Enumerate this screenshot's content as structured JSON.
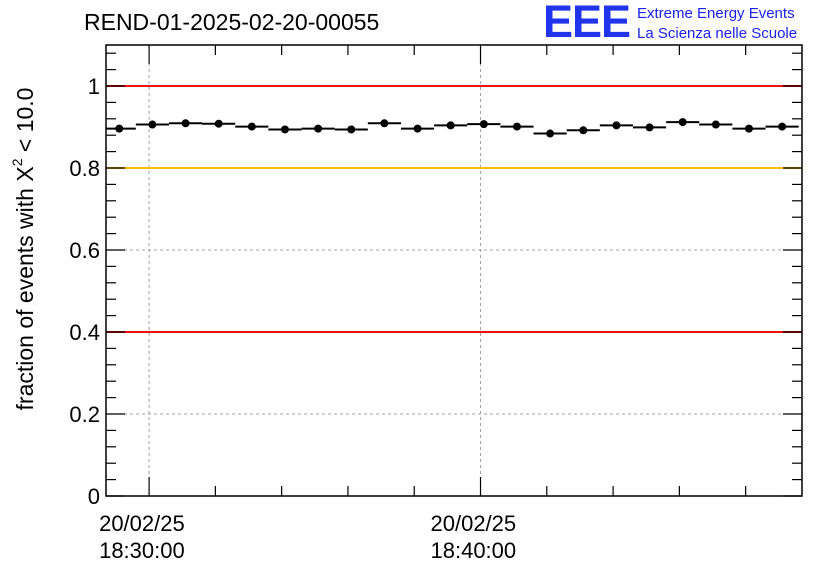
{
  "chart_data": {
    "type": "scatter",
    "title": "REND-01-2025-02-20-00055",
    "ylabel": {
      "prefix": "fraction of events with ",
      "symbol": "X",
      "sup": "2",
      "suffix": " < 10.0"
    },
    "xlabel": "",
    "ylim": [
      0,
      1.1
    ],
    "y_ticks": [
      {
        "value": 0,
        "label": "0"
      },
      {
        "value": 0.2,
        "label": "0.2"
      },
      {
        "value": 0.4,
        "label": "0.4"
      },
      {
        "value": 0.6,
        "label": "0.6"
      },
      {
        "value": 0.8,
        "label": "0.8"
      },
      {
        "value": 1,
        "label": "1"
      }
    ],
    "x_range_minutes": [
      -1.3,
      19.7
    ],
    "x_major_ticks": [
      {
        "minute": 0,
        "date": "20/02/25",
        "time": "18:30:00"
      },
      {
        "minute": 10,
        "date": "20/02/25",
        "time": "18:40:00"
      }
    ],
    "x_minor_ticks_minutes": [
      2,
      4,
      6,
      8,
      12,
      14,
      16,
      18
    ],
    "reference_lines": [
      {
        "value": 1.0,
        "color": "#ee1111"
      },
      {
        "value": 0.8,
        "color": "#ffbb00"
      },
      {
        "value": 0.4,
        "color": "#ee1111"
      }
    ],
    "grid": true,
    "bin_width_minutes": 1,
    "x": [
      -0.9,
      0.1,
      1.1,
      2.1,
      3.1,
      4.1,
      5.1,
      6.1,
      7.1,
      8.1,
      9.1,
      10.1,
      11.1,
      12.1,
      13.1,
      14.1,
      15.1,
      16.1,
      17.1,
      18.1,
      19.1
    ],
    "values": [
      0.896,
      0.906,
      0.909,
      0.908,
      0.901,
      0.894,
      0.896,
      0.894,
      0.909,
      0.896,
      0.904,
      0.907,
      0.901,
      0.884,
      0.892,
      0.904,
      0.899,
      0.912,
      0.906,
      0.896,
      0.901
    ]
  },
  "logo": {
    "mark": "EEE",
    "line1": "Extreme Energy Events",
    "line2": "La Scienza nelle Scuole"
  }
}
